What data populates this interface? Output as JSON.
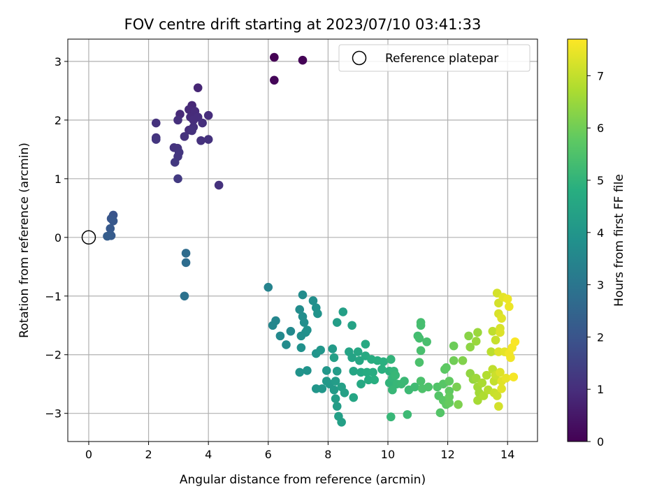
{
  "chart_data": {
    "type": "scatter",
    "title": "FOV centre drift starting at 2023/07/10 03:41:33",
    "xlabel": "Angular distance from reference (arcmin)",
    "ylabel": "Rotation from reference (arcmin)",
    "xlim": [
      -0.7,
      15.0
    ],
    "ylim": [
      -3.48,
      3.38
    ],
    "xticks": [
      0,
      2,
      4,
      6,
      8,
      10,
      12,
      14
    ],
    "yticks": [
      -3,
      -2,
      -1,
      0,
      1,
      2,
      3
    ],
    "grid": true,
    "legend": {
      "position": "top-right",
      "entries": [
        "Reference platepar"
      ]
    },
    "reference_point": {
      "x": 0,
      "y": 0
    },
    "colorbar": {
      "label": "Hours from first FF file",
      "colormap": "viridis",
      "range": [
        0,
        7.7
      ],
      "ticks": [
        0,
        1,
        2,
        3,
        4,
        5,
        6,
        7
      ]
    },
    "series": [
      {
        "points": [
          {
            "x": 6.2,
            "y": 3.07,
            "t": 0.0
          },
          {
            "x": 7.15,
            "y": 3.02,
            "t": 0.05
          },
          {
            "x": 6.2,
            "y": 2.68,
            "t": 0.1
          },
          {
            "x": 3.65,
            "y": 2.55,
            "t": 0.8
          },
          {
            "x": 3.45,
            "y": 2.25,
            "t": 0.85
          },
          {
            "x": 3.35,
            "y": 2.18,
            "t": 0.9
          },
          {
            "x": 3.55,
            "y": 2.15,
            "t": 0.95
          },
          {
            "x": 3.05,
            "y": 2.1,
            "t": 0.9
          },
          {
            "x": 3.4,
            "y": 2.05,
            "t": 0.95
          },
          {
            "x": 3.65,
            "y": 2.05,
            "t": 1.0
          },
          {
            "x": 4.0,
            "y": 2.08,
            "t": 1.0
          },
          {
            "x": 2.98,
            "y": 2.0,
            "t": 1.05
          },
          {
            "x": 3.5,
            "y": 2.0,
            "t": 1.0
          },
          {
            "x": 3.8,
            "y": 1.95,
            "t": 1.05
          },
          {
            "x": 2.25,
            "y": 1.95,
            "t": 1.1
          },
          {
            "x": 3.5,
            "y": 1.88,
            "t": 1.05
          },
          {
            "x": 3.35,
            "y": 1.83,
            "t": 1.0
          },
          {
            "x": 3.45,
            "y": 1.82,
            "t": 1.1
          },
          {
            "x": 3.2,
            "y": 1.72,
            "t": 1.1
          },
          {
            "x": 2.25,
            "y": 1.7,
            "t": 1.15
          },
          {
            "x": 2.25,
            "y": 1.67,
            "t": 1.2
          },
          {
            "x": 3.75,
            "y": 1.65,
            "t": 1.1
          },
          {
            "x": 4.0,
            "y": 1.67,
            "t": 1.1
          },
          {
            "x": 2.85,
            "y": 1.53,
            "t": 1.15
          },
          {
            "x": 2.97,
            "y": 1.52,
            "t": 1.15
          },
          {
            "x": 3.02,
            "y": 1.45,
            "t": 1.2
          },
          {
            "x": 2.98,
            "y": 1.38,
            "t": 1.2
          },
          {
            "x": 2.88,
            "y": 1.28,
            "t": 1.25
          },
          {
            "x": 2.98,
            "y": 1.0,
            "t": 1.3
          },
          {
            "x": 4.35,
            "y": 0.89,
            "t": 1.1
          },
          {
            "x": 0.82,
            "y": 0.38,
            "t": 2.0
          },
          {
            "x": 0.75,
            "y": 0.32,
            "t": 2.05
          },
          {
            "x": 0.82,
            "y": 0.28,
            "t": 2.1
          },
          {
            "x": 0.72,
            "y": 0.15,
            "t": 2.15
          },
          {
            "x": 0.75,
            "y": 0.03,
            "t": 2.2
          },
          {
            "x": 0.62,
            "y": 0.02,
            "t": 2.25
          },
          {
            "x": 3.25,
            "y": -0.27,
            "t": 2.7
          },
          {
            "x": 3.25,
            "y": -0.43,
            "t": 2.75
          },
          {
            "x": 3.2,
            "y": -1.0,
            "t": 2.9
          },
          {
            "x": 6.0,
            "y": -0.85,
            "t": 3.4
          },
          {
            "x": 6.25,
            "y": -1.42,
            "t": 3.5
          },
          {
            "x": 6.15,
            "y": -1.5,
            "t": 3.55
          },
          {
            "x": 6.4,
            "y": -1.68,
            "t": 3.6
          },
          {
            "x": 6.6,
            "y": -1.83,
            "t": 3.65
          },
          {
            "x": 6.75,
            "y": -1.6,
            "t": 3.6
          },
          {
            "x": 7.15,
            "y": -0.98,
            "t": 3.7
          },
          {
            "x": 7.05,
            "y": -1.23,
            "t": 3.7
          },
          {
            "x": 7.15,
            "y": -1.35,
            "t": 3.75
          },
          {
            "x": 7.2,
            "y": -1.45,
            "t": 3.75
          },
          {
            "x": 7.1,
            "y": -1.68,
            "t": 3.8
          },
          {
            "x": 7.25,
            "y": -1.62,
            "t": 3.8
          },
          {
            "x": 7.3,
            "y": -1.58,
            "t": 3.85
          },
          {
            "x": 7.1,
            "y": -1.88,
            "t": 3.85
          },
          {
            "x": 7.05,
            "y": -2.3,
            "t": 3.9
          },
          {
            "x": 7.3,
            "y": -2.27,
            "t": 3.9
          },
          {
            "x": 7.5,
            "y": -1.08,
            "t": 3.8
          },
          {
            "x": 7.6,
            "y": -1.2,
            "t": 3.85
          },
          {
            "x": 7.65,
            "y": -1.3,
            "t": 3.9
          },
          {
            "x": 7.6,
            "y": -1.98,
            "t": 3.95
          },
          {
            "x": 7.75,
            "y": -1.92,
            "t": 4.0
          },
          {
            "x": 7.6,
            "y": -2.58,
            "t": 4.0
          },
          {
            "x": 7.8,
            "y": -2.58,
            "t": 4.05
          },
          {
            "x": 7.95,
            "y": -2.27,
            "t": 4.05
          },
          {
            "x": 7.95,
            "y": -2.45,
            "t": 4.1
          },
          {
            "x": 8.05,
            "y": -2.5,
            "t": 4.1
          },
          {
            "x": 8.15,
            "y": -1.9,
            "t": 4.15
          },
          {
            "x": 8.2,
            "y": -2.6,
            "t": 4.15
          },
          {
            "x": 8.25,
            "y": -2.45,
            "t": 4.2
          },
          {
            "x": 8.3,
            "y": -2.28,
            "t": 4.2
          },
          {
            "x": 8.25,
            "y": -2.75,
            "t": 4.25
          },
          {
            "x": 8.3,
            "y": -2.88,
            "t": 4.25
          },
          {
            "x": 8.35,
            "y": -3.05,
            "t": 4.3
          },
          {
            "x": 8.45,
            "y": -3.15,
            "t": 4.3
          },
          {
            "x": 8.3,
            "y": -1.45,
            "t": 4.25
          },
          {
            "x": 8.5,
            "y": -1.27,
            "t": 4.3
          },
          {
            "x": 8.2,
            "y": -2.05,
            "t": 4.3
          },
          {
            "x": 8.45,
            "y": -2.55,
            "t": 4.35
          },
          {
            "x": 8.55,
            "y": -2.65,
            "t": 4.35
          },
          {
            "x": 8.8,
            "y": -1.5,
            "t": 4.4
          },
          {
            "x": 8.7,
            "y": -1.95,
            "t": 4.45
          },
          {
            "x": 8.8,
            "y": -2.05,
            "t": 4.45
          },
          {
            "x": 8.85,
            "y": -2.28,
            "t": 4.5
          },
          {
            "x": 8.85,
            "y": -2.73,
            "t": 4.5
          },
          {
            "x": 9.0,
            "y": -1.95,
            "t": 4.55
          },
          {
            "x": 9.05,
            "y": -2.1,
            "t": 4.55
          },
          {
            "x": 9.1,
            "y": -2.3,
            "t": 4.6
          },
          {
            "x": 9.1,
            "y": -2.5,
            "t": 4.6
          },
          {
            "x": 9.25,
            "y": -1.82,
            "t": 4.65
          },
          {
            "x": 9.25,
            "y": -2.02,
            "t": 4.65
          },
          {
            "x": 9.3,
            "y": -2.3,
            "t": 4.7
          },
          {
            "x": 9.35,
            "y": -2.43,
            "t": 4.7
          },
          {
            "x": 9.45,
            "y": -2.08,
            "t": 4.75
          },
          {
            "x": 9.5,
            "y": -2.3,
            "t": 4.75
          },
          {
            "x": 9.55,
            "y": -2.43,
            "t": 4.8
          },
          {
            "x": 9.65,
            "y": -2.1,
            "t": 4.8
          },
          {
            "x": 9.8,
            "y": -2.25,
            "t": 4.85
          },
          {
            "x": 9.85,
            "y": -2.12,
            "t": 4.85
          },
          {
            "x": 10.05,
            "y": -2.28,
            "t": 4.9
          },
          {
            "x": 10.1,
            "y": -2.08,
            "t": 5.0
          },
          {
            "x": 10.05,
            "y": -2.48,
            "t": 5.0
          },
          {
            "x": 10.15,
            "y": -2.4,
            "t": 5.05
          },
          {
            "x": 10.2,
            "y": -2.28,
            "t": 5.05
          },
          {
            "x": 10.25,
            "y": -2.35,
            "t": 5.1
          },
          {
            "x": 10.3,
            "y": -2.5,
            "t": 5.1
          },
          {
            "x": 10.15,
            "y": -2.6,
            "t": 5.1
          },
          {
            "x": 10.45,
            "y": -2.5,
            "t": 5.15
          },
          {
            "x": 10.55,
            "y": -2.45,
            "t": 5.15
          },
          {
            "x": 10.7,
            "y": -2.6,
            "t": 5.2
          },
          {
            "x": 10.1,
            "y": -3.06,
            "t": 5.1
          },
          {
            "x": 10.65,
            "y": -3.02,
            "t": 5.2
          },
          {
            "x": 10.9,
            "y": -2.55,
            "t": 5.25
          },
          {
            "x": 11.0,
            "y": -1.68,
            "t": 5.3
          },
          {
            "x": 11.1,
            "y": -1.45,
            "t": 5.35
          },
          {
            "x": 11.1,
            "y": -1.5,
            "t": 5.35
          },
          {
            "x": 11.05,
            "y": -1.72,
            "t": 5.35
          },
          {
            "x": 11.3,
            "y": -1.78,
            "t": 5.4
          },
          {
            "x": 11.1,
            "y": -1.93,
            "t": 5.4
          },
          {
            "x": 11.05,
            "y": -2.13,
            "t": 5.45
          },
          {
            "x": 11.1,
            "y": -2.45,
            "t": 5.45
          },
          {
            "x": 11.15,
            "y": -2.58,
            "t": 5.5
          },
          {
            "x": 11.35,
            "y": -2.55,
            "t": 5.5
          },
          {
            "x": 11.65,
            "y": -2.55,
            "t": 5.55
          },
          {
            "x": 11.7,
            "y": -2.7,
            "t": 5.6
          },
          {
            "x": 11.75,
            "y": -2.99,
            "t": 5.6
          },
          {
            "x": 11.85,
            "y": -2.5,
            "t": 5.65
          },
          {
            "x": 11.9,
            "y": -2.25,
            "t": 5.7
          },
          {
            "x": 11.85,
            "y": -2.78,
            "t": 5.7
          },
          {
            "x": 11.95,
            "y": -2.22,
            "t": 5.75
          },
          {
            "x": 11.95,
            "y": -2.85,
            "t": 5.75
          },
          {
            "x": 12.05,
            "y": -2.45,
            "t": 5.8
          },
          {
            "x": 12.05,
            "y": -2.62,
            "t": 5.8
          },
          {
            "x": 12.05,
            "y": -2.72,
            "t": 5.85
          },
          {
            "x": 12.05,
            "y": -2.82,
            "t": 5.85
          },
          {
            "x": 12.2,
            "y": -1.85,
            "t": 5.95
          },
          {
            "x": 12.2,
            "y": -2.1,
            "t": 6.0
          },
          {
            "x": 12.3,
            "y": -2.55,
            "t": 6.1
          },
          {
            "x": 12.35,
            "y": -2.85,
            "t": 6.15
          },
          {
            "x": 12.5,
            "y": -2.1,
            "t": 6.2
          },
          {
            "x": 12.7,
            "y": -1.68,
            "t": 6.3
          },
          {
            "x": 12.75,
            "y": -1.87,
            "t": 6.35
          },
          {
            "x": 12.75,
            "y": -2.32,
            "t": 6.4
          },
          {
            "x": 12.85,
            "y": -2.42,
            "t": 6.45
          },
          {
            "x": 12.95,
            "y": -1.77,
            "t": 6.5
          },
          {
            "x": 13.0,
            "y": -1.62,
            "t": 6.5
          },
          {
            "x": 12.95,
            "y": -2.4,
            "t": 6.55
          },
          {
            "x": 13.0,
            "y": -2.55,
            "t": 6.6
          },
          {
            "x": 13.05,
            "y": -2.65,
            "t": 6.6
          },
          {
            "x": 13.0,
            "y": -2.78,
            "t": 6.65
          },
          {
            "x": 13.15,
            "y": -2.48,
            "t": 6.7
          },
          {
            "x": 13.2,
            "y": -2.7,
            "t": 6.75
          },
          {
            "x": 13.3,
            "y": -2.35,
            "t": 6.8
          },
          {
            "x": 13.35,
            "y": -2.6,
            "t": 6.85
          },
          {
            "x": 13.45,
            "y": -1.95,
            "t": 6.9
          },
          {
            "x": 13.5,
            "y": -1.6,
            "t": 6.95
          },
          {
            "x": 13.5,
            "y": -2.25,
            "t": 6.95
          },
          {
            "x": 13.55,
            "y": -2.45,
            "t": 7.0
          },
          {
            "x": 13.55,
            "y": -2.65,
            "t": 7.05
          },
          {
            "x": 13.6,
            "y": -1.75,
            "t": 7.05
          },
          {
            "x": 13.6,
            "y": -2.35,
            "t": 7.1
          },
          {
            "x": 13.65,
            "y": -2.7,
            "t": 7.1
          },
          {
            "x": 13.65,
            "y": -0.95,
            "t": 7.2
          },
          {
            "x": 13.7,
            "y": -1.12,
            "t": 7.2
          },
          {
            "x": 13.7,
            "y": -1.3,
            "t": 7.25
          },
          {
            "x": 13.75,
            "y": -1.55,
            "t": 7.25
          },
          {
            "x": 13.75,
            "y": -1.62,
            "t": 7.3
          },
          {
            "x": 13.7,
            "y": -1.95,
            "t": 7.3
          },
          {
            "x": 13.7,
            "y": -2.88,
            "t": 7.2
          },
          {
            "x": 13.75,
            "y": -2.3,
            "t": 7.3
          },
          {
            "x": 13.8,
            "y": -1.38,
            "t": 7.35
          },
          {
            "x": 13.8,
            "y": -2.45,
            "t": 7.35
          },
          {
            "x": 13.8,
            "y": -2.58,
            "t": 7.35
          },
          {
            "x": 13.85,
            "y": -1.02,
            "t": 7.4
          },
          {
            "x": 13.9,
            "y": -1.95,
            "t": 7.4
          },
          {
            "x": 13.95,
            "y": -2.4,
            "t": 7.45
          },
          {
            "x": 14.0,
            "y": -1.05,
            "t": 7.5
          },
          {
            "x": 14.05,
            "y": -1.18,
            "t": 7.5
          },
          {
            "x": 14.05,
            "y": -1.98,
            "t": 7.55
          },
          {
            "x": 14.1,
            "y": -2.05,
            "t": 7.55
          },
          {
            "x": 14.15,
            "y": -1.88,
            "t": 7.6
          },
          {
            "x": 14.2,
            "y": -2.38,
            "t": 7.6
          },
          {
            "x": 14.25,
            "y": -1.78,
            "t": 7.65
          }
        ]
      }
    ]
  }
}
